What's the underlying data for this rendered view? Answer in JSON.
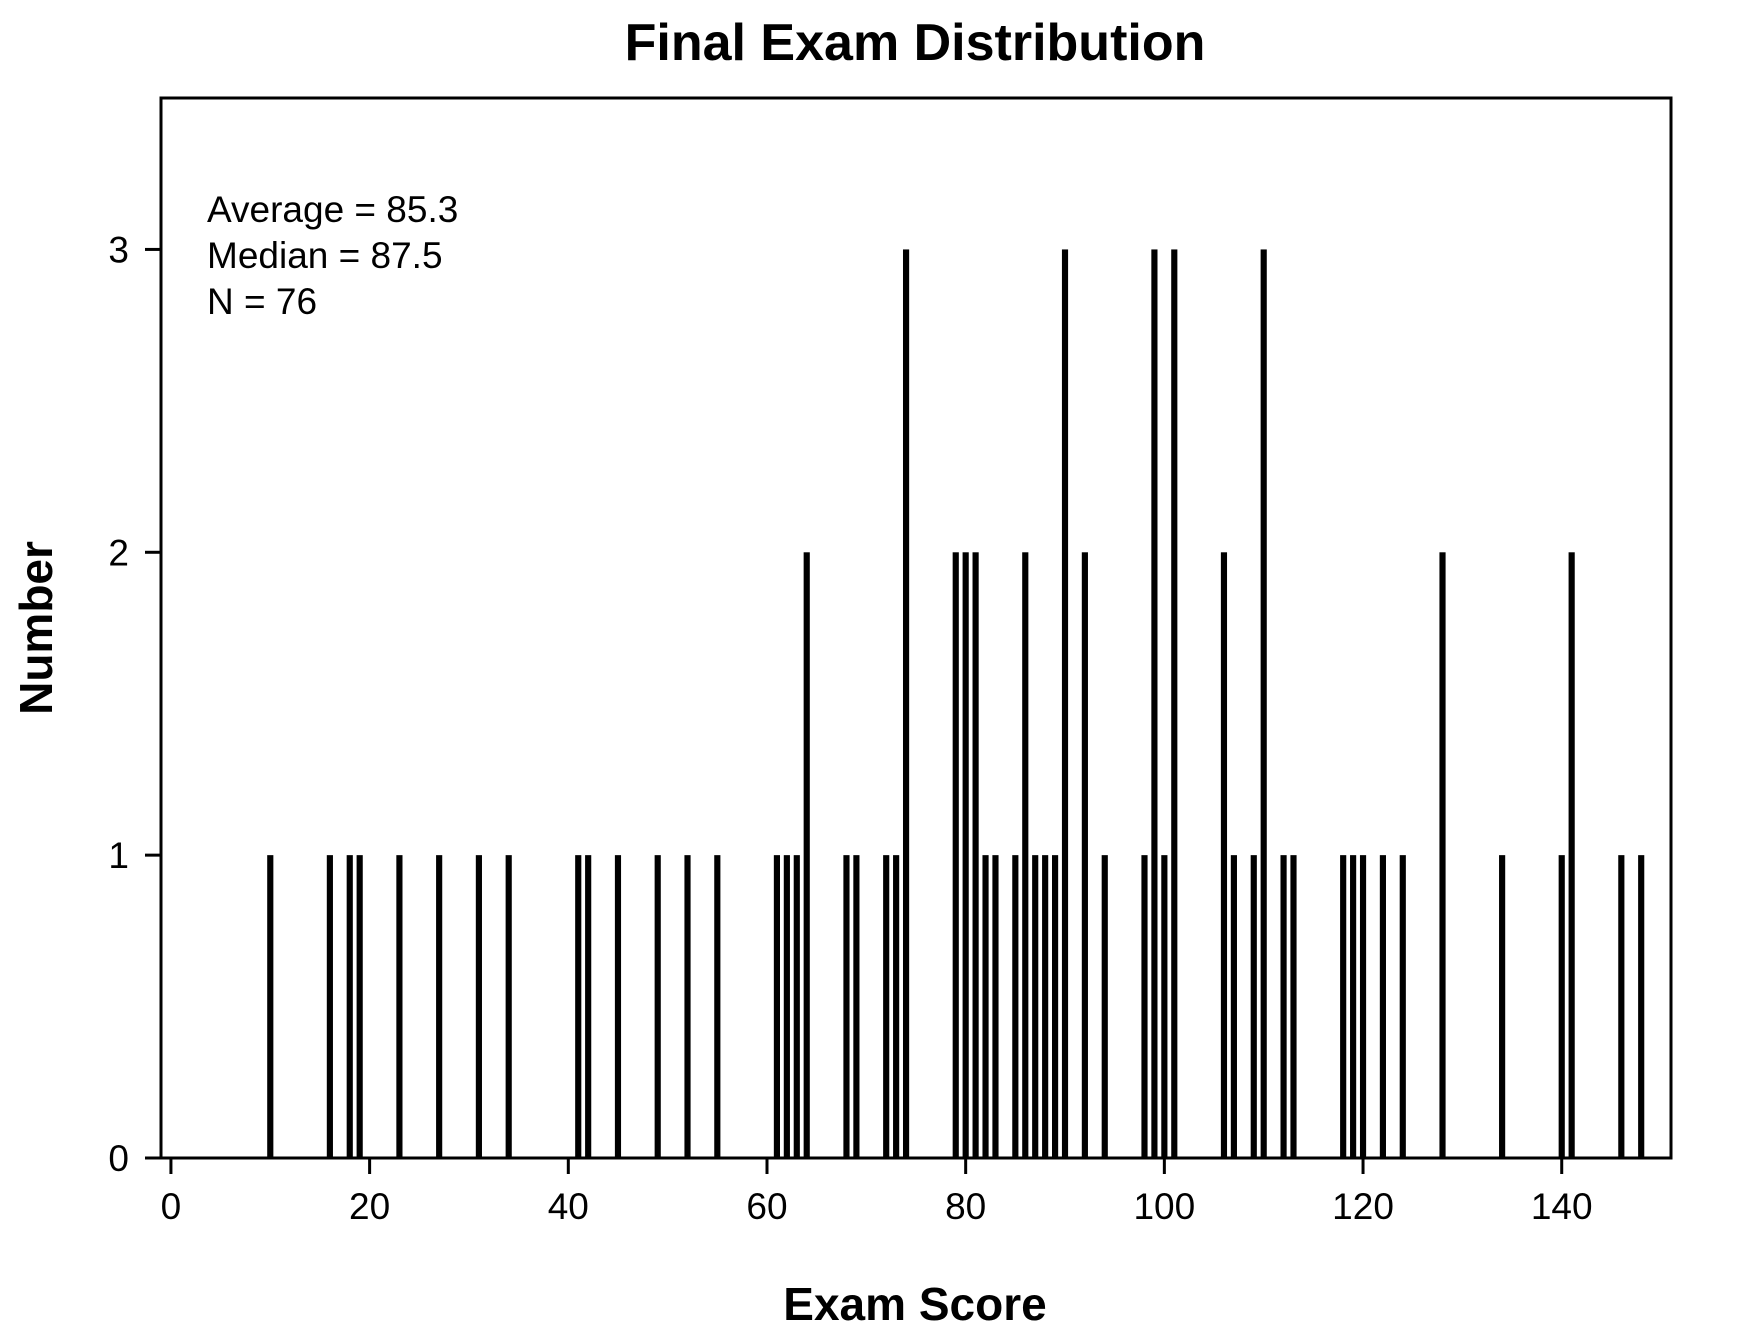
{
  "chart_data": {
    "type": "bar",
    "title": "Final Exam Distribution",
    "xlabel": "Exam Score",
    "ylabel": "Number",
    "xlim": [
      -1,
      151
    ],
    "ylim": [
      0,
      3.5
    ],
    "xticks": [
      0,
      20,
      40,
      60,
      80,
      100,
      120,
      140
    ],
    "yticks": [
      0,
      1,
      2,
      3
    ],
    "grid": false,
    "bar_color": "#000000",
    "annotations": [
      "Average = 85.3",
      "Median = 87.5",
      "N = 76"
    ],
    "bars": [
      {
        "x": 10,
        "y": 1
      },
      {
        "x": 16,
        "y": 1
      },
      {
        "x": 18,
        "y": 1
      },
      {
        "x": 19,
        "y": 1
      },
      {
        "x": 23,
        "y": 1
      },
      {
        "x": 27,
        "y": 1
      },
      {
        "x": 31,
        "y": 1
      },
      {
        "x": 34,
        "y": 1
      },
      {
        "x": 41,
        "y": 1
      },
      {
        "x": 42,
        "y": 1
      },
      {
        "x": 45,
        "y": 1
      },
      {
        "x": 49,
        "y": 1
      },
      {
        "x": 52,
        "y": 1
      },
      {
        "x": 55,
        "y": 1
      },
      {
        "x": 61,
        "y": 1
      },
      {
        "x": 62,
        "y": 1
      },
      {
        "x": 63,
        "y": 1
      },
      {
        "x": 64,
        "y": 2
      },
      {
        "x": 68,
        "y": 1
      },
      {
        "x": 69,
        "y": 1
      },
      {
        "x": 72,
        "y": 1
      },
      {
        "x": 73,
        "y": 1
      },
      {
        "x": 74,
        "y": 3
      },
      {
        "x": 79,
        "y": 2
      },
      {
        "x": 80,
        "y": 2
      },
      {
        "x": 81,
        "y": 2
      },
      {
        "x": 82,
        "y": 1
      },
      {
        "x": 83,
        "y": 1
      },
      {
        "x": 85,
        "y": 1
      },
      {
        "x": 86,
        "y": 2
      },
      {
        "x": 87,
        "y": 1
      },
      {
        "x": 88,
        "y": 1
      },
      {
        "x": 89,
        "y": 1
      },
      {
        "x": 90,
        "y": 3
      },
      {
        "x": 92,
        "y": 2
      },
      {
        "x": 94,
        "y": 1
      },
      {
        "x": 98,
        "y": 1
      },
      {
        "x": 99,
        "y": 3
      },
      {
        "x": 100,
        "y": 1
      },
      {
        "x": 101,
        "y": 3
      },
      {
        "x": 106,
        "y": 2
      },
      {
        "x": 107,
        "y": 1
      },
      {
        "x": 109,
        "y": 1
      },
      {
        "x": 110,
        "y": 3
      },
      {
        "x": 112,
        "y": 1
      },
      {
        "x": 113,
        "y": 1
      },
      {
        "x": 118,
        "y": 1
      },
      {
        "x": 119,
        "y": 1
      },
      {
        "x": 120,
        "y": 1
      },
      {
        "x": 122,
        "y": 1
      },
      {
        "x": 124,
        "y": 1
      },
      {
        "x": 128,
        "y": 2
      },
      {
        "x": 134,
        "y": 1
      },
      {
        "x": 140,
        "y": 1
      },
      {
        "x": 141,
        "y": 2
      },
      {
        "x": 146,
        "y": 1
      },
      {
        "x": 148,
        "y": 1
      }
    ]
  }
}
